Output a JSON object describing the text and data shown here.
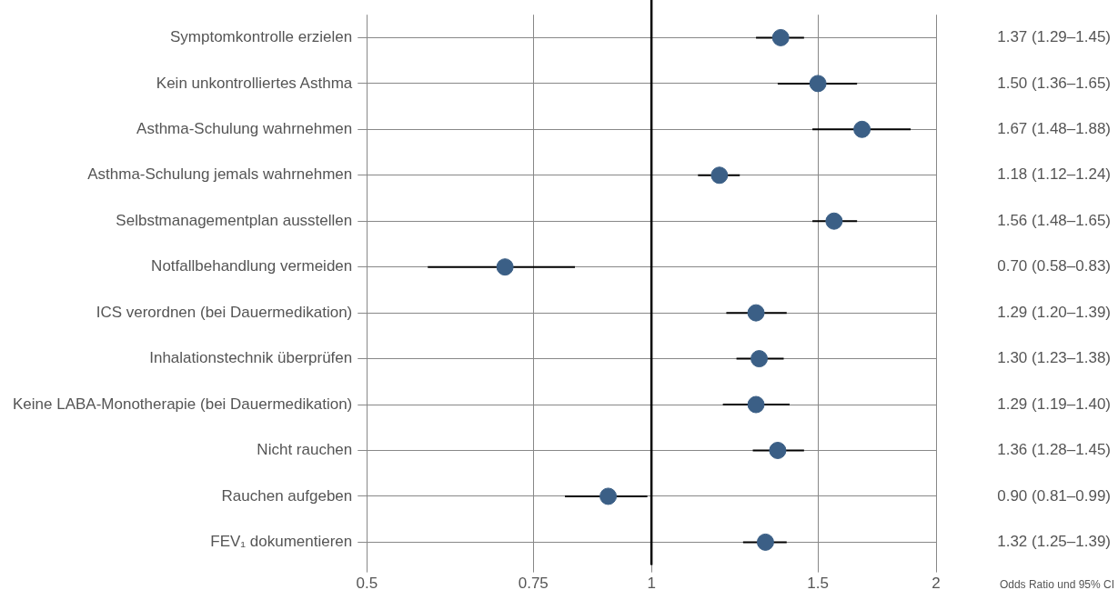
{
  "chart_data": {
    "type": "scatter",
    "orientation": "horizontal",
    "annotations": [
      "Odds Ratio und 95% CI"
    ],
    "categories": [
      "Symptomkontrolle erzielen",
      "Kein unkontrolliertes Asthma",
      "Asthma-Schulung wahrnehmen",
      "Asthma-Schulung jemals wahrnehmen",
      "Selbstmanagementplan ausstellen",
      "Notfallbehandlung vermeiden",
      "ICS verordnen (bei Dauermedikation)",
      "Inhalationstechnik überprüfen",
      "Keine LABA-Monotherapie (bei Dauermedikation)",
      "Nicht rauchen",
      "Rauchen aufgeben",
      "FEV₁ dokumentieren"
    ],
    "values": [
      1.37,
      1.5,
      1.67,
      1.18,
      1.56,
      0.7,
      1.29,
      1.3,
      1.29,
      1.36,
      0.9,
      1.32
    ],
    "errors": [
      [
        1.29,
        1.45
      ],
      [
        1.36,
        1.65
      ],
      [
        1.48,
        1.88
      ],
      [
        1.12,
        1.24
      ],
      [
        1.48,
        1.65
      ],
      [
        0.58,
        0.83
      ],
      [
        1.2,
        1.39
      ],
      [
        1.23,
        1.38
      ],
      [
        1.19,
        1.4
      ],
      [
        1.28,
        1.45
      ],
      [
        0.81,
        0.99
      ],
      [
        1.25,
        1.39
      ]
    ],
    "value_labels": [
      "1.37 (1.29–1.45)",
      "1.50 (1.36–1.65)",
      "1.67 (1.48–1.88)",
      "1.18 (1.12–1.24)",
      "1.56 (1.48–1.65)",
      "0.70 (0.58–0.83)",
      "1.29 (1.20–1.39)",
      "1.30 (1.23–1.38)",
      "1.29 (1.19–1.40)",
      "1.36 (1.28–1.45)",
      "0.90 (0.81–0.99)",
      "1.32 (1.25–1.39)"
    ],
    "color": "#3b5f86",
    "marker": "circle",
    "log": "x",
    "xlim": [
      0.5,
      2
    ],
    "xticks": [
      0.5,
      0.75,
      1,
      1.5,
      2
    ],
    "ref_lines": [
      {
        "axis": "x",
        "value": 1,
        "color": "#000000"
      }
    ],
    "grid": true,
    "legend": false
  }
}
